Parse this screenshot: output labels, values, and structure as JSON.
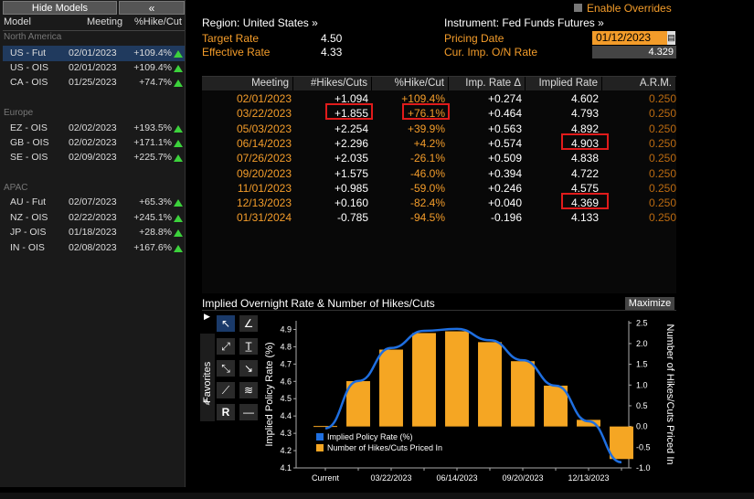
{
  "left_panel": {
    "hide_label": "Hide Models",
    "collapse_label": "«",
    "headers": {
      "model": "Model",
      "meeting": "Meeting",
      "hike": "%Hike/Cut"
    },
    "sections": [
      {
        "name": "North America",
        "rows": [
          {
            "model": "US - Fut",
            "meeting": "02/01/2023",
            "hike": "+109.4%"
          },
          {
            "model": "US - OIS",
            "meeting": "02/01/2023",
            "hike": "+109.4%"
          },
          {
            "model": "CA - OIS",
            "meeting": "01/25/2023",
            "hike": "+74.7%"
          }
        ]
      },
      {
        "name": "Europe",
        "rows": [
          {
            "model": "EZ - OIS",
            "meeting": "02/02/2023",
            "hike": "+193.5%"
          },
          {
            "model": "GB - OIS",
            "meeting": "02/02/2023",
            "hike": "+171.1%"
          },
          {
            "model": "SE - OIS",
            "meeting": "02/09/2023",
            "hike": "+225.7%"
          }
        ]
      },
      {
        "name": "APAC",
        "rows": [
          {
            "model": "AU - Fut",
            "meeting": "02/07/2023",
            "hike": "+65.3%"
          },
          {
            "model": "NZ - OIS",
            "meeting": "02/22/2023",
            "hike": "+245.1%"
          },
          {
            "model": "JP - OIS",
            "meeting": "01/18/2023",
            "hike": "+28.8%"
          },
          {
            "model": "IN - OIS",
            "meeting": "02/08/2023",
            "hike": "+167.6%"
          }
        ]
      }
    ]
  },
  "info": {
    "enable_overrides": "Enable Overrides",
    "region": "Region: United States »",
    "instrument": "Instrument: Fed Funds Futures »",
    "target_rate_label": "Target Rate",
    "target_rate": "4.50",
    "effective_rate_label": "Effective Rate",
    "effective_rate": "4.33",
    "pricing_date_label": "Pricing Date",
    "pricing_date": "01/12/2023",
    "on_rate_label": "Cur. Imp. O/N Rate",
    "on_rate": "4.329"
  },
  "table": {
    "headers": [
      "Meeting",
      "#Hikes/Cuts",
      "%Hike/Cut",
      "Imp. Rate Δ",
      "Implied Rate",
      "A.R.M."
    ],
    "rows": [
      [
        "02/01/2023",
        "+1.094",
        "+109.4%",
        "+0.274",
        "4.602",
        "0.250"
      ],
      [
        "03/22/2023",
        "+1.855",
        "+76.1%",
        "+0.464",
        "4.793",
        "0.250"
      ],
      [
        "05/03/2023",
        "+2.254",
        "+39.9%",
        "+0.563",
        "4.892",
        "0.250"
      ],
      [
        "06/14/2023",
        "+2.296",
        "+4.2%",
        "+0.574",
        "4.903",
        "0.250"
      ],
      [
        "07/26/2023",
        "+2.035",
        "-26.1%",
        "+0.509",
        "4.838",
        "0.250"
      ],
      [
        "09/20/2023",
        "+1.575",
        "-46.0%",
        "+0.394",
        "4.722",
        "0.250"
      ],
      [
        "11/01/2023",
        "+0.985",
        "-59.0%",
        "+0.246",
        "4.575",
        "0.250"
      ],
      [
        "12/13/2023",
        "+0.160",
        "-82.4%",
        "+0.040",
        "4.369",
        "0.250"
      ],
      [
        "01/31/2024",
        "-0.785",
        "-94.5%",
        "-0.196",
        "4.133",
        "0.250"
      ]
    ]
  },
  "chart_panel": {
    "title": "Implied Overnight Rate & Number of Hikes/Cuts",
    "maximize": "Maximize",
    "favorites": "Favorites"
  },
  "chart_data": {
    "type": "bar",
    "categories": [
      "Current",
      "02/01/2023",
      "03/22/2023",
      "05/03/2023",
      "06/14/2023",
      "07/26/2023",
      "09/20/2023",
      "11/01/2023",
      "12/13/2023",
      "01/31/2024"
    ],
    "x_tick_labels": [
      "Current",
      "03/22/2023",
      "06/14/2023",
      "09/20/2023",
      "12/13/2023"
    ],
    "series": [
      {
        "name": "Implied Policy Rate (%)",
        "type": "line",
        "axis": "left",
        "color": "#1f6fe0",
        "values": [
          4.329,
          4.602,
          4.793,
          4.892,
          4.903,
          4.838,
          4.722,
          4.575,
          4.369,
          4.133
        ]
      },
      {
        "name": "Number of Hikes/Cuts Priced In",
        "type": "bar",
        "axis": "right",
        "color": "#f5a623",
        "values": [
          0,
          1.094,
          1.855,
          2.254,
          2.296,
          2.035,
          1.575,
          0.985,
          0.16,
          -0.785
        ]
      }
    ],
    "ylabel": "Implied Policy Rate (%)",
    "y2label": "Number of Hikes/Cuts Priced In",
    "ylim": [
      4.1,
      4.95
    ],
    "y_ticks": [
      "4.9",
      "4.8",
      "4.7",
      "4.6",
      "4.5",
      "4.4",
      "4.3",
      "4.2",
      "4.1"
    ],
    "y2lim": [
      -1.0,
      2.55
    ],
    "y2_ticks": [
      "2.5",
      "2.0",
      "1.5",
      "1.0",
      "0.5",
      "0.0",
      "-0.5",
      "-1.0"
    ],
    "legend": "bottom-left"
  }
}
